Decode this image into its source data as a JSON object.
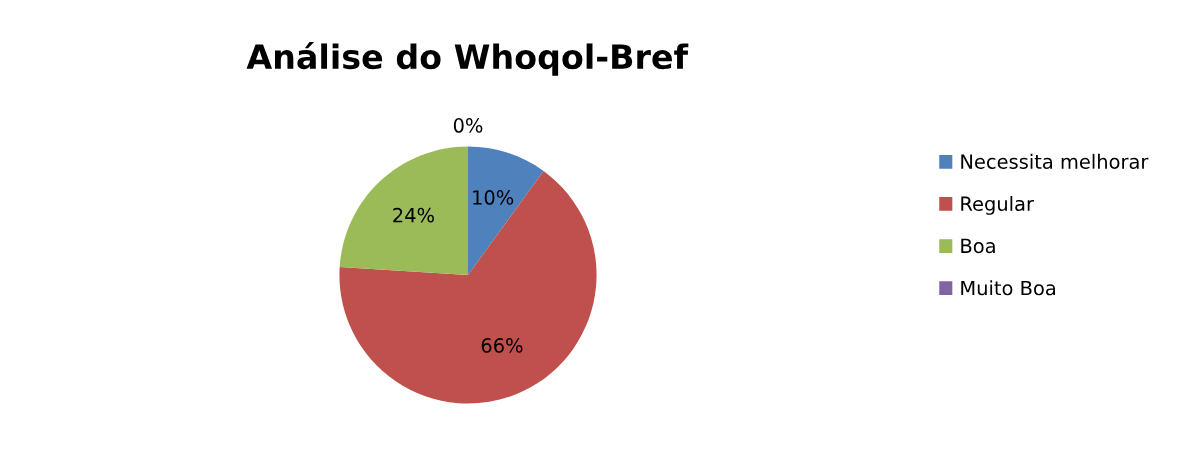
{
  "chart_data": {
    "type": "pie",
    "title": "Análise do Whoqol-Bref",
    "categories": [
      "Necessita melhorar",
      "Regular",
      "Boa",
      "Muito Boa"
    ],
    "values": [
      10,
      66,
      24,
      0
    ],
    "colors": [
      "#4f81bd",
      "#c0504d",
      "#9bbb59",
      "#8064a2"
    ],
    "value_labels": [
      "10%",
      "66%",
      "24%",
      "0%"
    ],
    "legend": "right"
  }
}
